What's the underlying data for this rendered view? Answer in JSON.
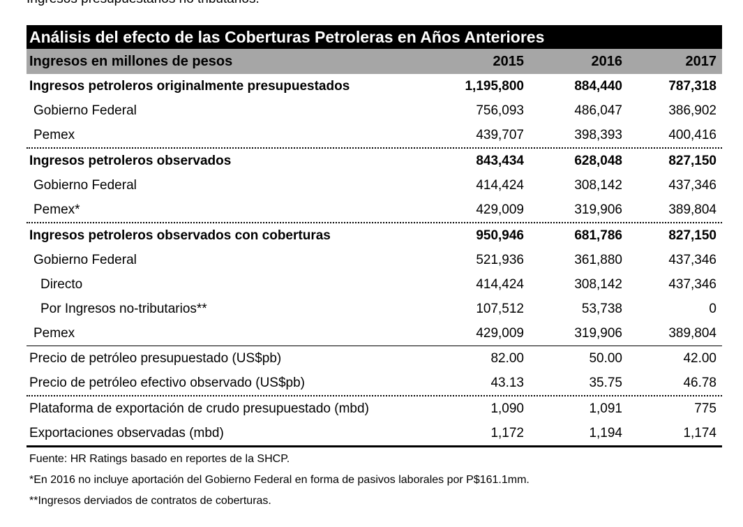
{
  "top_text": "Ingresos presupuestarios no tributarios.",
  "table": {
    "title": "Análisis del efecto de las Coberturas Petroleras en Años Anteriores",
    "header": {
      "label": "Ingresos en millones de pesos",
      "years": [
        "2015",
        "2016",
        "2017"
      ]
    },
    "rows": [
      {
        "label": "Ingresos petroleros originalmente presupuestados",
        "values": [
          "1,195,800",
          "884,440",
          "787,318"
        ],
        "bold": true,
        "indent": 0,
        "border": ""
      },
      {
        "label": "Gobierno Federal",
        "values": [
          "756,093",
          "486,047",
          "386,902"
        ],
        "bold": false,
        "indent": 1,
        "border": ""
      },
      {
        "label": "Pemex",
        "values": [
          "439,707",
          "398,393",
          "400,416"
        ],
        "bold": false,
        "indent": 1,
        "border": "dotted"
      },
      {
        "label": "Ingresos petroleros observados",
        "values": [
          "843,434",
          "628,048",
          "827,150"
        ],
        "bold": true,
        "indent": 0,
        "border": ""
      },
      {
        "label": "Gobierno Federal",
        "values": [
          "414,424",
          "308,142",
          "437,346"
        ],
        "bold": false,
        "indent": 1,
        "border": ""
      },
      {
        "label": "Pemex*",
        "values": [
          "429,009",
          "319,906",
          "389,804"
        ],
        "bold": false,
        "indent": 1,
        "border": "dotted"
      },
      {
        "label": "Ingresos petroleros observados con coberturas",
        "values": [
          "950,946",
          "681,786",
          "827,150"
        ],
        "bold": true,
        "indent": 0,
        "border": ""
      },
      {
        "label": "Gobierno Federal",
        "values": [
          "521,936",
          "361,880",
          "437,346"
        ],
        "bold": false,
        "indent": 1,
        "border": ""
      },
      {
        "label": "Directo",
        "values": [
          "414,424",
          "308,142",
          "437,346"
        ],
        "bold": false,
        "indent": 2,
        "border": ""
      },
      {
        "label": "Por Ingresos no-tributarios**",
        "values": [
          "107,512",
          "53,738",
          "0"
        ],
        "bold": false,
        "indent": 2,
        "border": ""
      },
      {
        "label": "Pemex",
        "values": [
          "429,009",
          "319,906",
          "389,804"
        ],
        "bold": false,
        "indent": 1,
        "border": "solid"
      },
      {
        "label": "Precio de petróleo presupuestado (US$pb)",
        "values": [
          "82.00",
          "50.00",
          "42.00"
        ],
        "bold": false,
        "indent": 0,
        "border": ""
      },
      {
        "label": "Precio de petróleo efectivo observado (US$pb)",
        "values": [
          "43.13",
          "35.75",
          "46.78"
        ],
        "bold": false,
        "indent": 0,
        "border": "dotted"
      },
      {
        "label": "Plataforma de exportación de crudo presupuestado (mbd)",
        "values": [
          "1,090",
          "1,091",
          "775"
        ],
        "bold": false,
        "indent": 0,
        "border": ""
      },
      {
        "label": "Exportaciones observadas (mbd)",
        "values": [
          "1,172",
          "1,194",
          "1,174"
        ],
        "bold": false,
        "indent": 0,
        "border": "thick"
      }
    ],
    "notes": [
      "Fuente: HR Ratings basado en reportes de la SHCP.",
      "*En 2016 no incluye aportación del Gobierno Federal en forma de pasivos laborales por P$161.1mm.",
      "**Ingresos derviados de contratos de coberturas."
    ]
  }
}
